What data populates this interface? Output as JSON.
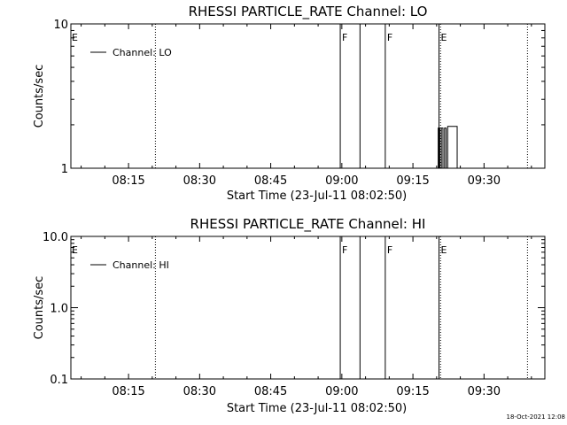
{
  "footer": {
    "timestamp": "18-Oct-2021 12:08"
  },
  "chart_data": [
    {
      "type": "line",
      "title": "RHESSI PARTICLE_RATE Channel: LO",
      "xlabel": "Start Time (23-Jul-11 08:02:50)",
      "ylabel": "Counts/sec",
      "y_scale": "log",
      "ylim": [
        1,
        10
      ],
      "y_ticks": [
        "1",
        "10"
      ],
      "x_tick_labels": [
        "08:15",
        "08:30",
        "08:45",
        "09:00",
        "09:15",
        "09:30"
      ],
      "legend": {
        "position": "top-left",
        "entries": [
          "Channel: LO"
        ]
      },
      "markers": [
        {
          "label": "E",
          "time": "08:02:50",
          "style": "dotted"
        },
        {
          "label": "",
          "time": "08:20:40",
          "style": "dotted"
        },
        {
          "label": "F",
          "time": "08:59:40",
          "style": "solid"
        },
        {
          "label": "",
          "time": "09:03:50",
          "style": "solid"
        },
        {
          "label": "F",
          "time": "09:09:10",
          "style": "solid"
        },
        {
          "label": "E",
          "time": "09:20:30",
          "style": "solid"
        },
        {
          "label": "",
          "time": "09:20:50",
          "style": "dotted"
        },
        {
          "label": "",
          "time": "09:39:10",
          "style": "dotted"
        }
      ],
      "series": [
        {
          "name": "Channel: LO",
          "x": [
            "09:20:00",
            "09:20:20",
            "09:20:40",
            "09:21:00",
            "09:21:20",
            "09:21:40",
            "09:22:00",
            "09:22:20",
            "09:23:30",
            "09:24:00",
            "09:24:20"
          ],
          "y": [
            1,
            1.9,
            1,
            1.9,
            1,
            1.9,
            1,
            1.95,
            1.95,
            1.95,
            1
          ]
        }
      ]
    },
    {
      "type": "line",
      "title": "RHESSI PARTICLE_RATE Channel: HI",
      "xlabel": "Start Time (23-Jul-11 08:02:50)",
      "ylabel": "Counts/sec",
      "y_scale": "log",
      "ylim": [
        0.1,
        10
      ],
      "y_ticks": [
        "0.1",
        "1.0",
        "10.0"
      ],
      "x_tick_labels": [
        "08:15",
        "08:30",
        "08:45",
        "09:00",
        "09:15",
        "09:30"
      ],
      "legend": {
        "position": "top-left",
        "entries": [
          "Channel: HI"
        ]
      },
      "markers": [
        {
          "label": "E",
          "time": "08:02:50",
          "style": "dotted"
        },
        {
          "label": "",
          "time": "08:20:40",
          "style": "dotted"
        },
        {
          "label": "F",
          "time": "08:59:40",
          "style": "solid"
        },
        {
          "label": "",
          "time": "09:03:50",
          "style": "solid"
        },
        {
          "label": "F",
          "time": "09:09:10",
          "style": "solid"
        },
        {
          "label": "E",
          "time": "09:20:30",
          "style": "solid"
        },
        {
          "label": "",
          "time": "09:20:50",
          "style": "dotted"
        },
        {
          "label": "",
          "time": "09:39:10",
          "style": "dotted"
        }
      ],
      "series": [
        {
          "name": "Channel: HI",
          "x": [],
          "y": []
        }
      ]
    }
  ]
}
